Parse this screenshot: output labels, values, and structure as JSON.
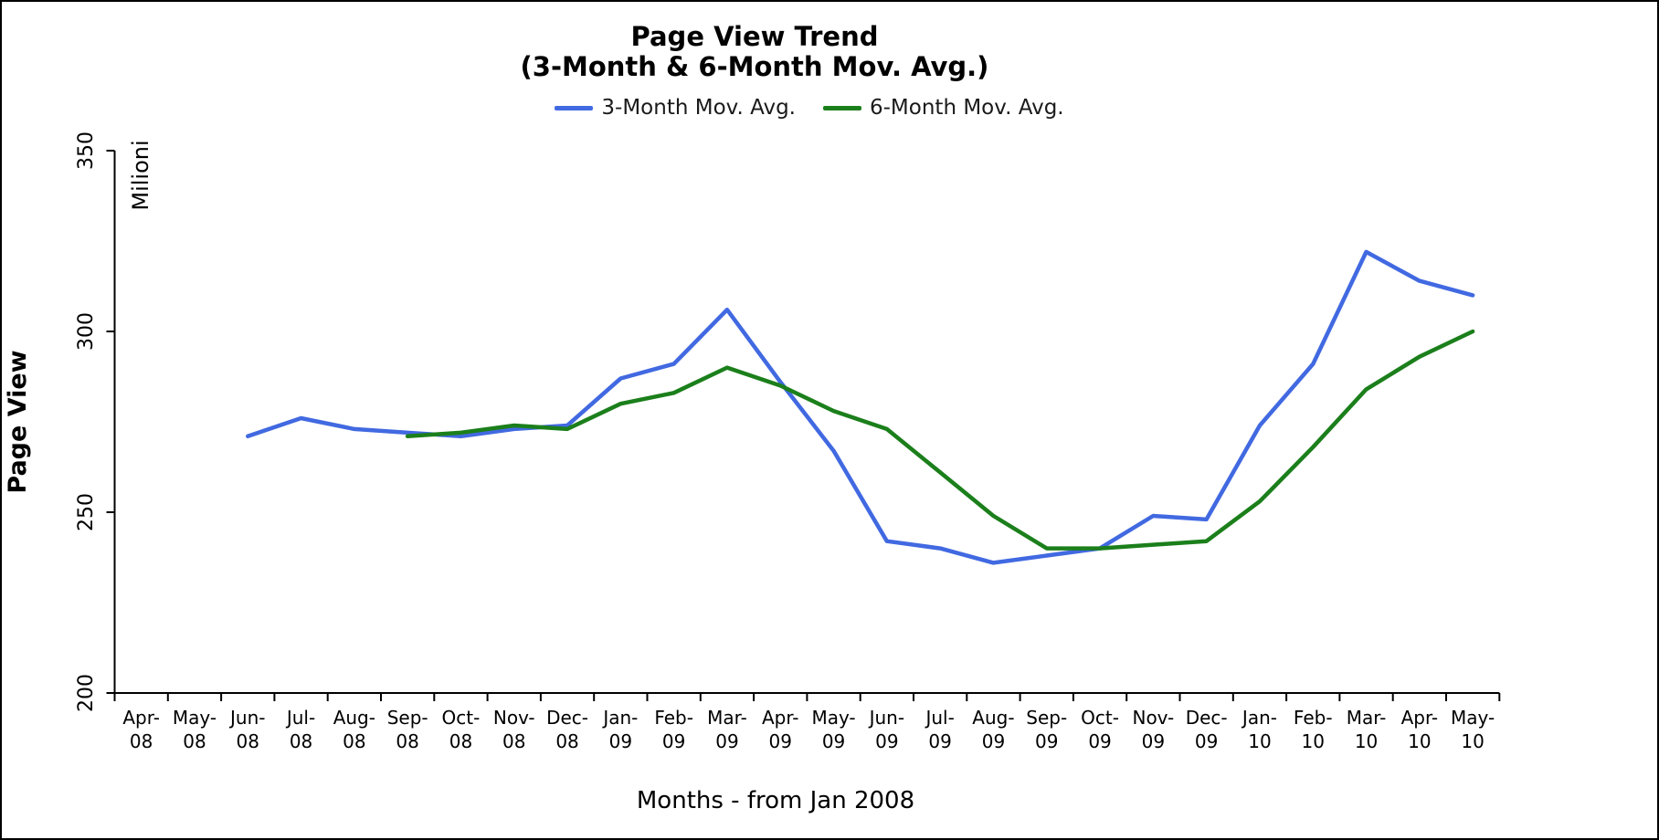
{
  "title": {
    "line1": "Page View Trend",
    "line2": "(3-Month & 6-Month Mov. Avg.)"
  },
  "legend": {
    "items": [
      {
        "label": "3-Month Mov. Avg."
      },
      {
        "label": "6-Month Mov. Avg."
      }
    ]
  },
  "y_axis": {
    "title": "Page View",
    "unit_label": "Milioni",
    "ticks": [
      350,
      300,
      250,
      200
    ]
  },
  "x_axis": {
    "title": "Months - from Jan 2008"
  },
  "chart_data": {
    "type": "line",
    "title": "Page View Trend (3-Month & 6-Month Mov. Avg.)",
    "xlabel": "Months - from Jan 2008",
    "ylabel": "Page View (Milioni)",
    "ylim": [
      200,
      350
    ],
    "y_ticks": [
      200,
      250,
      300,
      350
    ],
    "grid": false,
    "legend_position": "top",
    "categories": [
      "Apr-08",
      "May-08",
      "Jun-08",
      "Jul-08",
      "Aug-08",
      "Sep-08",
      "Oct-08",
      "Nov-08",
      "Dec-08",
      "Jan-09",
      "Feb-09",
      "Mar-09",
      "Apr-09",
      "May-09",
      "Jun-09",
      "Jul-09",
      "Aug-09",
      "Sep-09",
      "Oct-09",
      "Nov-09",
      "Dec-09",
      "Jan-10",
      "Feb-10",
      "Mar-10",
      "Apr-10",
      "May-10"
    ],
    "series": [
      {
        "name": "3-Month Mov. Avg.",
        "color": "#4169E1",
        "start_index": 2,
        "values": [
          271,
          276,
          273,
          272,
          271,
          273,
          274,
          287,
          291,
          306,
          286,
          267,
          242,
          240,
          236,
          238,
          240,
          249,
          248,
          274,
          291,
          322,
          314,
          310
        ]
      },
      {
        "name": "6-Month Mov. Avg.",
        "color": "#1B7F1B",
        "start_index": 5,
        "values": [
          271,
          272,
          274,
          273,
          280,
          283,
          290,
          285,
          278,
          273,
          261,
          249,
          240,
          240,
          241,
          242,
          253,
          268,
          284,
          293,
          300
        ]
      }
    ]
  }
}
